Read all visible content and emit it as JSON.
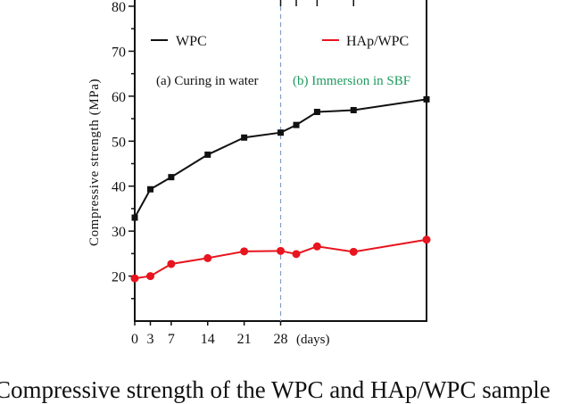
{
  "chart_data": {
    "type": "line",
    "xlabel": "(days)",
    "ylabel": "Compressive strength (MPa)",
    "x": [
      0,
      3,
      7,
      14,
      21,
      28,
      31,
      35,
      42,
      56
    ],
    "x_tick_labels": [
      "0",
      "3",
      "7",
      "14",
      "21",
      "28"
    ],
    "x_ticks": [
      0,
      3,
      7,
      14,
      21,
      28
    ],
    "xlim": [
      0,
      56
    ],
    "ylim": [
      10,
      80
    ],
    "y_ticks": [
      20,
      30,
      40,
      50,
      60,
      70,
      80
    ],
    "y_tick_labels": [
      "20",
      "30",
      "40",
      "50",
      "60",
      "70",
      "80"
    ],
    "grid": false,
    "legend_placement": "top",
    "series": [
      {
        "name": "WPC",
        "color": "#111111",
        "marker": "square",
        "values": [
          33.0,
          39.3,
          42.0,
          47.0,
          50.8,
          51.9,
          53.6,
          56.5,
          56.9,
          59.3
        ]
      },
      {
        "name": "HAp/WPC",
        "color": "#e8141e",
        "marker": "circle",
        "values": [
          19.5,
          20.0,
          22.7,
          24.0,
          25.5,
          25.6,
          24.9,
          26.6,
          25.4,
          28.1
        ]
      }
    ],
    "divider_x": 28,
    "annotations": [
      {
        "text": "(a) Curing in water",
        "color": "#111111"
      },
      {
        "text": "(b) Immersion in SBF",
        "color": "#1f9a5e"
      }
    ]
  },
  "caption": "Compressive strength of the WPC and HAp/WPC sample"
}
